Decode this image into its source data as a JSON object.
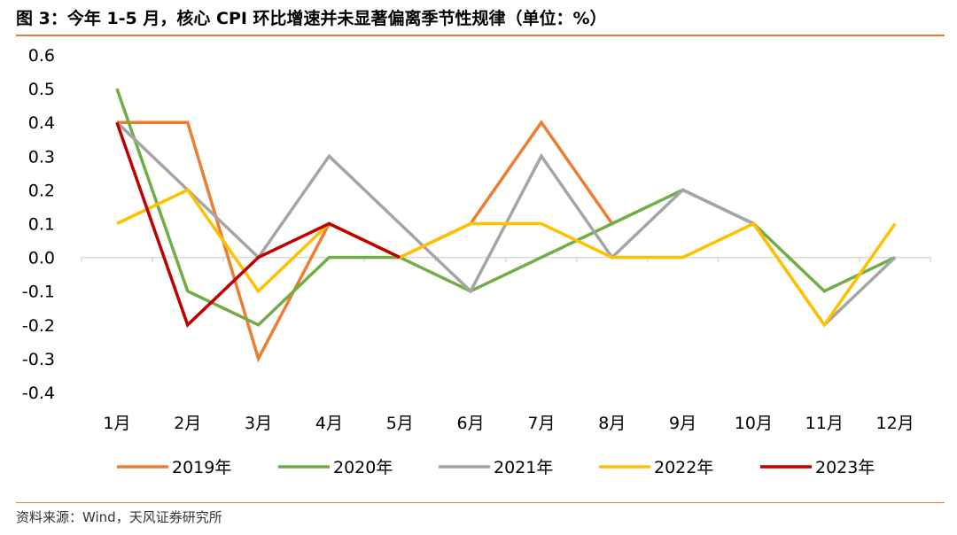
{
  "figure": {
    "title": "图 3：今年 1-5 月，核心 CPI 环比增速并未显著偏离季节性规律（单位：%）",
    "source": "资料来源：Wind，天风证券研究所"
  },
  "chart_data": {
    "type": "line",
    "title": "",
    "xlabel": "",
    "ylabel": "",
    "categories": [
      "1月",
      "2月",
      "3月",
      "4月",
      "5月",
      "6月",
      "7月",
      "8月",
      "9月",
      "10月",
      "11月",
      "12月"
    ],
    "ylim": [
      -0.4,
      0.6
    ],
    "yticks": [
      "0.6",
      "0.5",
      "0.4",
      "0.3",
      "0.2",
      "0.1",
      "0.0",
      "-0.1",
      "-0.2",
      "-0.3",
      "-0.4"
    ],
    "grid": false,
    "legend_position": "bottom",
    "series": [
      {
        "name": "2019年",
        "color": "#ED7D31",
        "values": [
          0.4,
          0.4,
          -0.3,
          0.1,
          0.0,
          0.1,
          0.4,
          0.1,
          null,
          null,
          null,
          null
        ]
      },
      {
        "name": "2020年",
        "color": "#70AD47",
        "values": [
          0.5,
          -0.1,
          -0.2,
          0.0,
          0.0,
          -0.1,
          0.0,
          0.1,
          0.2,
          0.1,
          -0.1,
          0.0
        ]
      },
      {
        "name": "2021年",
        "color": "#A5A5A5",
        "values": [
          0.4,
          0.2,
          0.0,
          0.3,
          0.1,
          -0.1,
          0.3,
          0.0,
          0.2,
          0.1,
          -0.2,
          0.0
        ]
      },
      {
        "name": "2022年",
        "color": "#FFC000",
        "values": [
          0.1,
          0.2,
          -0.1,
          0.1,
          0.0,
          0.1,
          0.1,
          0.0,
          0.0,
          0.1,
          -0.2,
          0.1
        ]
      },
      {
        "name": "2023年",
        "color": "#C00000",
        "values": [
          0.4,
          -0.2,
          0.0,
          0.1,
          0.0,
          null,
          null,
          null,
          null,
          null,
          null,
          null
        ]
      }
    ]
  }
}
